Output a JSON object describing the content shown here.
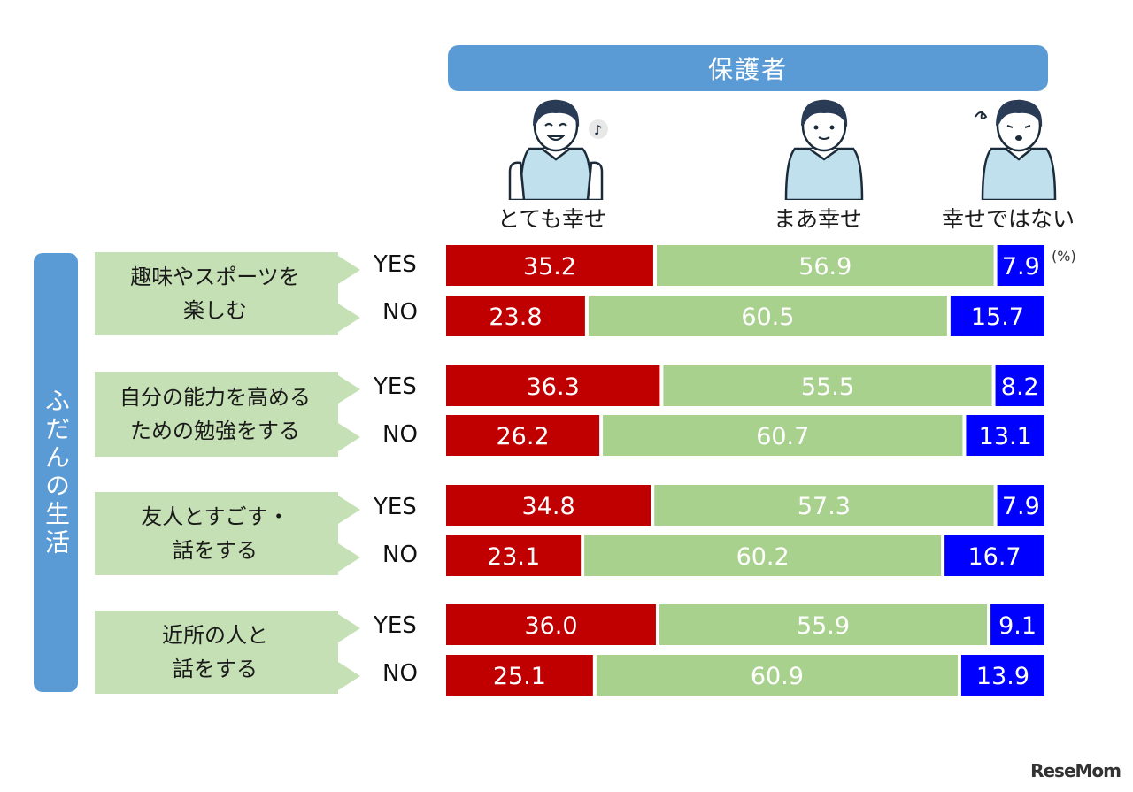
{
  "header": {
    "title": "保護者"
  },
  "side_label": "ふだんの生活",
  "unit_label": "(%)",
  "colors": {
    "very_happy": "#c00000",
    "somewhat_happy": "#a9d18e",
    "not_happy": "#0000ff",
    "accent": "#5b9bd5"
  },
  "icons": {
    "very_happy": "happy-person-icon",
    "somewhat_happy": "neutral-person-icon",
    "not_happy": "worried-person-icon"
  },
  "watermark": "ReseMom",
  "chart_data": {
    "type": "bar",
    "orientation": "horizontal",
    "stacked": true,
    "legend_placement": "top",
    "series": [
      {
        "name": "とても幸せ",
        "values": [
          35.2,
          23.8,
          36.3,
          26.2,
          34.8,
          23.1,
          36.0,
          25.1
        ]
      },
      {
        "name": "まあ幸せ",
        "values": [
          56.9,
          60.5,
          55.5,
          60.7,
          57.3,
          60.2,
          55.9,
          60.9
        ]
      },
      {
        "name": "幸せではない",
        "values": [
          7.9,
          15.7,
          8.2,
          13.1,
          7.9,
          16.7,
          9.1,
          13.9
        ]
      }
    ],
    "categories": [
      "YES",
      "NO",
      "YES",
      "NO",
      "YES",
      "NO",
      "YES",
      "NO"
    ],
    "groups": [
      {
        "lines": [
          "趣味やスポーツを",
          "楽しむ"
        ]
      },
      {
        "lines": [
          "自分の能力を高める",
          "ための勉強をする"
        ]
      },
      {
        "lines": [
          "友人とすごす・",
          "話をする"
        ]
      },
      {
        "lines": [
          "近所の人と",
          "話をする"
        ]
      }
    ],
    "xlim": [
      0,
      100
    ]
  }
}
